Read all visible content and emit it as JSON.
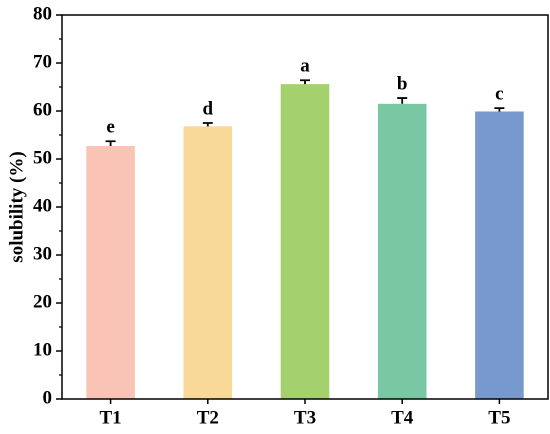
{
  "chart_data": {
    "type": "bar",
    "y_label": "solubility (%)",
    "categories": [
      "T1",
      "T2",
      "T3",
      "T4",
      "T5"
    ],
    "values": [
      52.7,
      56.8,
      65.6,
      61.5,
      59.9
    ],
    "errors": [
      1.0,
      0.7,
      0.8,
      1.2,
      0.7
    ],
    "letters": [
      "e",
      "d",
      "a",
      "b",
      "c"
    ],
    "colors": [
      "#f9c4b5",
      "#f8d998",
      "#a5d06e",
      "#7ac8a3",
      "#7799cd"
    ],
    "ylim": [
      0,
      80
    ],
    "yticks": [
      0,
      10,
      20,
      30,
      40,
      50,
      60,
      70,
      80
    ]
  }
}
